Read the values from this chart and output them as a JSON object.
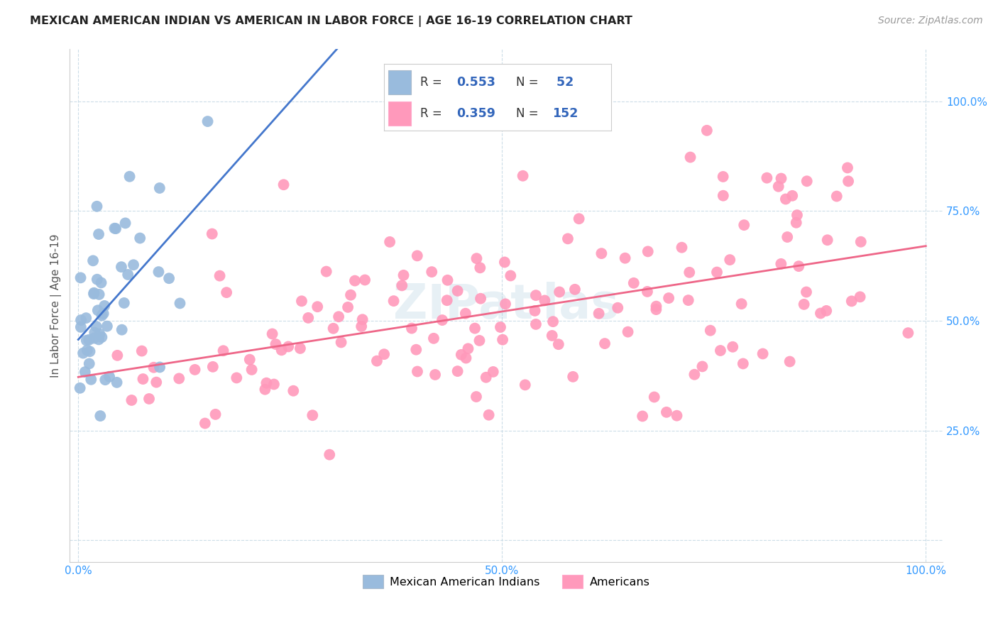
{
  "title": "MEXICAN AMERICAN INDIAN VS AMERICAN IN LABOR FORCE | AGE 16-19 CORRELATION CHART",
  "source": "Source: ZipAtlas.com",
  "ylabel": "In Labor Force | Age 16-19",
  "blue_color": "#99BBDD",
  "pink_color": "#FF99BB",
  "blue_line_color": "#4477CC",
  "pink_line_color": "#EE6688",
  "legend_text_color": "#3366BB",
  "watermark": "ZIPat las",
  "title_fontsize": 11.5,
  "source_fontsize": 10,
  "tick_fontsize": 11,
  "ylabel_fontsize": 11,
  "legend_R_blue": "0.553",
  "legend_N_blue": "52",
  "legend_R_pink": "0.359",
  "legend_N_pink": "152"
}
